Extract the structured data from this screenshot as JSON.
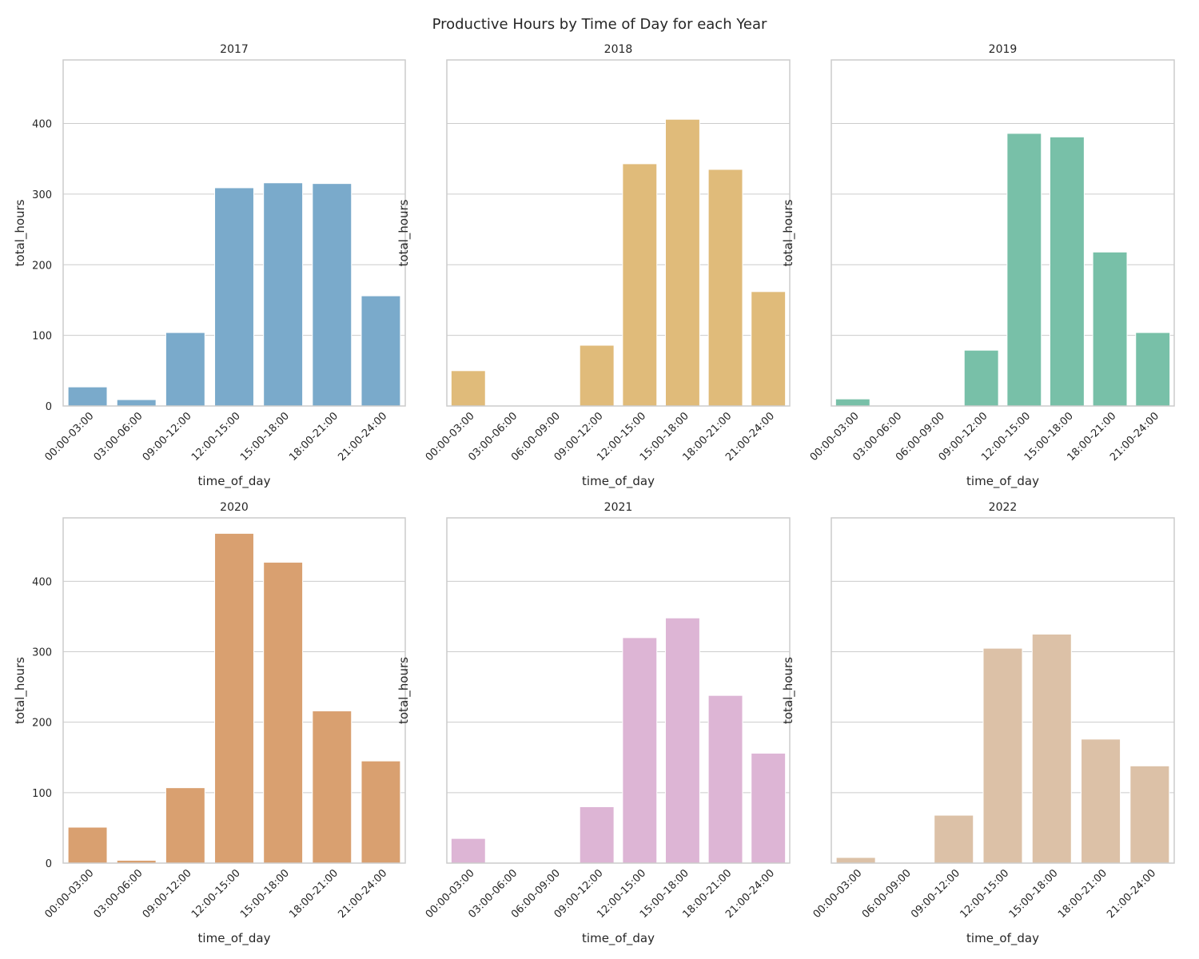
{
  "suptitle": "Productive Hours by Time of Day for each Year",
  "chart_data": [
    {
      "type": "bar",
      "title": "2017",
      "xlabel": "time_of_day",
      "ylabel": "total_hours",
      "ylim": [
        0,
        490
      ],
      "yticks": [
        0,
        100,
        200,
        300,
        400
      ],
      "show_ytick_labels": true,
      "grid": true,
      "color": "#7aaacb",
      "categories": [
        "00:00-03:00",
        "03:00-06:00",
        "09:00-12:00",
        "12:00-15:00",
        "15:00-18:00",
        "18:00-21:00",
        "21:00-24:00"
      ],
      "values": [
        27,
        9,
        104,
        309,
        316,
        315,
        156
      ]
    },
    {
      "type": "bar",
      "title": "2018",
      "xlabel": "time_of_day",
      "ylabel": "total_hours",
      "ylim": [
        0,
        490
      ],
      "yticks": [
        0,
        100,
        200,
        300,
        400
      ],
      "show_ytick_labels": false,
      "grid": true,
      "color": "#e0bb7a",
      "categories": [
        "00:00-03:00",
        "03:00-06:00",
        "06:00-09:00",
        "09:00-12:00",
        "12:00-15:00",
        "15:00-18:00",
        "18:00-21:00",
        "21:00-24:00"
      ],
      "values": [
        50,
        0,
        0,
        86,
        343,
        406,
        335,
        162
      ]
    },
    {
      "type": "bar",
      "title": "2019",
      "xlabel": "time_of_day",
      "ylabel": "total_hours",
      "ylim": [
        0,
        490
      ],
      "yticks": [
        0,
        100,
        200,
        300,
        400
      ],
      "show_ytick_labels": false,
      "grid": true,
      "color": "#78c0a8",
      "categories": [
        "00:00-03:00",
        "03:00-06:00",
        "06:00-09:00",
        "09:00-12:00",
        "12:00-15:00",
        "15:00-18:00",
        "18:00-21:00",
        "21:00-24:00"
      ],
      "values": [
        10,
        0,
        0,
        79,
        386,
        381,
        218,
        104
      ]
    },
    {
      "type": "bar",
      "title": "2020",
      "xlabel": "time_of_day",
      "ylabel": "total_hours",
      "ylim": [
        0,
        490
      ],
      "yticks": [
        0,
        100,
        200,
        300,
        400
      ],
      "show_ytick_labels": true,
      "grid": true,
      "color": "#d9a070",
      "categories": [
        "00:00-03:00",
        "03:00-06:00",
        "09:00-12:00",
        "12:00-15:00",
        "15:00-18:00",
        "18:00-21:00",
        "21:00-24:00"
      ],
      "values": [
        51,
        4,
        107,
        468,
        427,
        216,
        145
      ]
    },
    {
      "type": "bar",
      "title": "2021",
      "xlabel": "time_of_day",
      "ylabel": "total_hours",
      "ylim": [
        0,
        490
      ],
      "yticks": [
        0,
        100,
        200,
        300,
        400
      ],
      "show_ytick_labels": false,
      "grid": true,
      "color": "#ddb5d5",
      "categories": [
        "00:00-03:00",
        "03:00-06:00",
        "06:00-09:00",
        "09:00-12:00",
        "12:00-15:00",
        "15:00-18:00",
        "18:00-21:00",
        "21:00-24:00"
      ],
      "values": [
        35,
        0,
        0,
        80,
        320,
        348,
        238,
        156
      ]
    },
    {
      "type": "bar",
      "title": "2022",
      "xlabel": "time_of_day",
      "ylabel": "total_hours",
      "ylim": [
        0,
        490
      ],
      "yticks": [
        0,
        100,
        200,
        300,
        400
      ],
      "show_ytick_labels": false,
      "grid": true,
      "color": "#dcc1a7",
      "categories": [
        "00:00-03:00",
        "06:00-09:00",
        "09:00-12:00",
        "12:00-15:00",
        "15:00-18:00",
        "18:00-21:00",
        "21:00-24:00"
      ],
      "values": [
        8,
        0,
        68,
        305,
        325,
        176,
        138
      ]
    }
  ]
}
